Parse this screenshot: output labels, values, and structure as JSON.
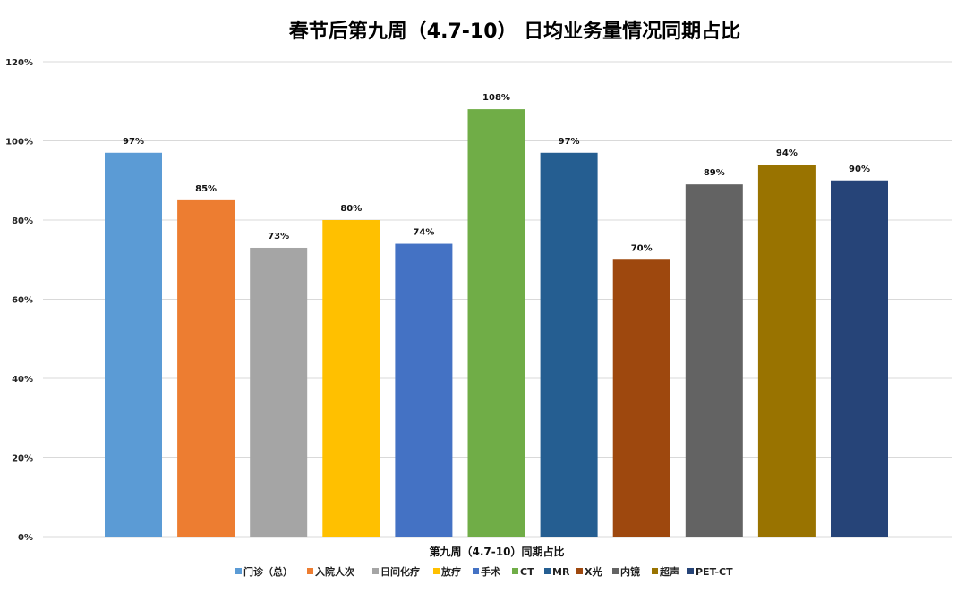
{
  "chart_data": {
    "type": "bar",
    "title": "春节后第九周（4.7-10） 日均业务量情况同期占比",
    "xlabel": "第九周（4.7-10）同期占比",
    "ylabel": "",
    "ylim": [
      0,
      120
    ],
    "yticks": [
      0,
      20,
      40,
      60,
      80,
      100,
      120
    ],
    "ytick_suffix": "%",
    "grid": true,
    "legend_position": "bottom",
    "categories": [
      "门诊（总）",
      "入院人次",
      "日间化疗",
      "放疗",
      "手术",
      "CT",
      "MR",
      "X光",
      "内镜",
      "超声",
      "PET-CT"
    ],
    "values": [
      97,
      85,
      73,
      80,
      74,
      108,
      97,
      70,
      89,
      94,
      90
    ],
    "data_labels": [
      "97%",
      "85%",
      "73%",
      "80%",
      "74%",
      "108%",
      "97%",
      "70%",
      "89%",
      "94%",
      "90%"
    ],
    "colors": [
      "#5B9BD5",
      "#ED7D31",
      "#A5A5A5",
      "#FFC000",
      "#4472C4",
      "#70AD47",
      "#255E91",
      "#9E480E",
      "#636363",
      "#997300",
      "#264478"
    ]
  }
}
